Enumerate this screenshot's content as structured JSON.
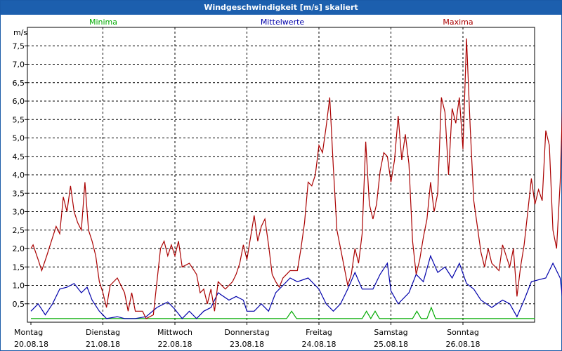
{
  "window": {
    "title": "Windgeschwindigkeit [m/s] skaliert"
  },
  "colors": {
    "minima": "#00aa00",
    "mittel": "#0000aa",
    "maxima": "#aa0000",
    "titlebar": "#1c5fae"
  },
  "chart_data": {
    "type": "line",
    "title": "Windgeschwindigkeit [m/s] skaliert",
    "ylabel": "m/s",
    "ylim": [
      0,
      8
    ],
    "yticks": [
      "0,5",
      "1,0",
      "1,5",
      "2,0",
      "2,5",
      "3,0",
      "3,5",
      "4,0",
      "4,5",
      "5,0",
      "5,5",
      "6,0",
      "6,5",
      "7,0",
      "7,5"
    ],
    "grid": true,
    "legend_placement": "top",
    "days": [
      {
        "weekday": "Montag",
        "date": "20.08.18"
      },
      {
        "weekday": "Dienstag",
        "date": "21.08.18"
      },
      {
        "weekday": "Mittwoch",
        "date": "22.08.18"
      },
      {
        "weekday": "Donnerstag",
        "date": "23.08.18"
      },
      {
        "weekday": "Freitag",
        "date": "24.08.18"
      },
      {
        "weekday": "Samstag",
        "date": "25.08.18"
      },
      {
        "weekday": "Sonntag",
        "date": "26.08.18"
      }
    ],
    "x_range_days": [
      0,
      7
    ],
    "series": [
      {
        "name": "Minima",
        "color": "#00aa00",
        "points": [
          [
            0,
            0.1
          ],
          [
            3.55,
            0.1
          ],
          [
            3.62,
            0.3
          ],
          [
            3.69,
            0.1
          ],
          [
            4.6,
            0.1
          ],
          [
            4.66,
            0.3
          ],
          [
            4.72,
            0.1
          ],
          [
            4.78,
            0.3
          ],
          [
            4.84,
            0.1
          ],
          [
            5.3,
            0.1
          ],
          [
            5.36,
            0.3
          ],
          [
            5.42,
            0.1
          ],
          [
            5.5,
            0.1
          ],
          [
            5.56,
            0.4
          ],
          [
            5.62,
            0.1
          ],
          [
            7,
            0.1
          ]
        ]
      },
      {
        "name": "Mittelwerte",
        "color": "#0000aa",
        "points": [
          [
            0,
            0.3
          ],
          [
            0.1,
            0.5
          ],
          [
            0.2,
            0.2
          ],
          [
            0.3,
            0.5
          ],
          [
            0.4,
            0.9
          ],
          [
            0.5,
            0.95
          ],
          [
            0.6,
            1.05
          ],
          [
            0.7,
            0.8
          ],
          [
            0.78,
            0.95
          ],
          [
            0.85,
            0.6
          ],
          [
            0.95,
            0.3
          ],
          [
            1.05,
            0.1
          ],
          [
            1.2,
            0.15
          ],
          [
            1.3,
            0.1
          ],
          [
            1.45,
            0.1
          ],
          [
            1.6,
            0.15
          ],
          [
            1.75,
            0.4
          ],
          [
            1.9,
            0.55
          ],
          [
            2.0,
            0.35
          ],
          [
            2.1,
            0.1
          ],
          [
            2.2,
            0.3
          ],
          [
            2.3,
            0.1
          ],
          [
            2.4,
            0.3
          ],
          [
            2.5,
            0.4
          ],
          [
            2.6,
            0.8
          ],
          [
            2.75,
            0.6
          ],
          [
            2.85,
            0.7
          ],
          [
            2.95,
            0.6
          ],
          [
            3.0,
            0.3
          ],
          [
            3.1,
            0.3
          ],
          [
            3.2,
            0.5
          ],
          [
            3.3,
            0.3
          ],
          [
            3.4,
            0.8
          ],
          [
            3.5,
            1.0
          ],
          [
            3.6,
            1.2
          ],
          [
            3.7,
            1.1
          ],
          [
            3.85,
            1.2
          ],
          [
            4.0,
            0.9
          ],
          [
            4.1,
            0.5
          ],
          [
            4.2,
            0.3
          ],
          [
            4.3,
            0.5
          ],
          [
            4.4,
            0.9
          ],
          [
            4.5,
            1.35
          ],
          [
            4.6,
            0.9
          ],
          [
            4.75,
            0.9
          ],
          [
            4.85,
            1.3
          ],
          [
            4.95,
            1.6
          ],
          [
            5.0,
            0.85
          ],
          [
            5.1,
            0.5
          ],
          [
            5.25,
            0.8
          ],
          [
            5.35,
            1.3
          ],
          [
            5.45,
            1.1
          ],
          [
            5.55,
            1.8
          ],
          [
            5.65,
            1.35
          ],
          [
            5.75,
            1.5
          ],
          [
            5.85,
            1.2
          ],
          [
            5.95,
            1.6
          ],
          [
            6.05,
            1.05
          ],
          [
            6.15,
            0.9
          ],
          [
            6.25,
            0.6
          ],
          [
            6.4,
            0.4
          ],
          [
            6.55,
            0.6
          ],
          [
            6.65,
            0.5
          ],
          [
            6.75,
            0.15
          ],
          [
            6.85,
            0.6
          ],
          [
            6.95,
            1.1
          ],
          [
            7.05,
            1.15
          ],
          [
            7.15,
            1.2
          ],
          [
            7.25,
            1.6
          ],
          [
            7.35,
            1.2
          ],
          [
            7.4,
            0.4
          ],
          [
            7.48,
            0.7
          ],
          [
            7.55,
            2.1
          ],
          [
            7.6,
            0.85
          ]
        ]
      },
      {
        "name": "Maxima",
        "color": "#aa0000",
        "points": [
          [
            0,
            2.0
          ],
          [
            0.03,
            2.1
          ],
          [
            0.1,
            1.7
          ],
          [
            0.15,
            1.4
          ],
          [
            0.22,
            1.8
          ],
          [
            0.3,
            2.3
          ],
          [
            0.35,
            2.6
          ],
          [
            0.4,
            2.4
          ],
          [
            0.45,
            3.4
          ],
          [
            0.5,
            3.0
          ],
          [
            0.55,
            3.7
          ],
          [
            0.6,
            3.0
          ],
          [
            0.65,
            2.7
          ],
          [
            0.7,
            2.5
          ],
          [
            0.75,
            3.8
          ],
          [
            0.8,
            2.5
          ],
          [
            0.85,
            2.2
          ],
          [
            0.9,
            1.8
          ],
          [
            0.95,
            1.1
          ],
          [
            1.0,
            0.8
          ],
          [
            1.05,
            0.4
          ],
          [
            1.1,
            1.0
          ],
          [
            1.2,
            1.2
          ],
          [
            1.3,
            0.8
          ],
          [
            1.35,
            0.3
          ],
          [
            1.4,
            0.8
          ],
          [
            1.45,
            0.3
          ],
          [
            1.55,
            0.3
          ],
          [
            1.6,
            0.1
          ],
          [
            1.7,
            0.2
          ],
          [
            1.75,
            1.1
          ],
          [
            1.8,
            2.0
          ],
          [
            1.85,
            2.2
          ],
          [
            1.9,
            1.8
          ],
          [
            1.95,
            2.1
          ],
          [
            2.0,
            1.8
          ],
          [
            2.05,
            2.2
          ],
          [
            2.1,
            1.5
          ],
          [
            2.2,
            1.6
          ],
          [
            2.3,
            1.3
          ],
          [
            2.35,
            0.8
          ],
          [
            2.4,
            0.9
          ],
          [
            2.45,
            0.5
          ],
          [
            2.5,
            0.9
          ],
          [
            2.55,
            0.3
          ],
          [
            2.6,
            1.1
          ],
          [
            2.7,
            0.9
          ],
          [
            2.8,
            1.1
          ],
          [
            2.85,
            1.3
          ],
          [
            2.9,
            1.6
          ],
          [
            2.95,
            2.1
          ],
          [
            3.0,
            1.7
          ],
          [
            3.05,
            2.3
          ],
          [
            3.1,
            2.9
          ],
          [
            3.15,
            2.2
          ],
          [
            3.2,
            2.6
          ],
          [
            3.25,
            2.8
          ],
          [
            3.3,
            2.1
          ],
          [
            3.35,
            1.3
          ],
          [
            3.4,
            1.1
          ],
          [
            3.45,
            0.95
          ],
          [
            3.5,
            1.2
          ],
          [
            3.55,
            1.3
          ],
          [
            3.6,
            1.4
          ],
          [
            3.7,
            1.4
          ],
          [
            3.75,
            2.0
          ],
          [
            3.8,
            2.7
          ],
          [
            3.85,
            3.8
          ],
          [
            3.9,
            3.7
          ],
          [
            3.95,
            4.0
          ],
          [
            4.0,
            4.8
          ],
          [
            4.05,
            4.6
          ],
          [
            4.1,
            5.3
          ],
          [
            4.15,
            6.1
          ],
          [
            4.2,
            4.2
          ],
          [
            4.25,
            2.5
          ],
          [
            4.3,
            2.0
          ],
          [
            4.35,
            1.5
          ],
          [
            4.4,
            1.0
          ],
          [
            4.45,
            1.3
          ],
          [
            4.5,
            2.0
          ],
          [
            4.55,
            1.6
          ],
          [
            4.6,
            2.4
          ],
          [
            4.65,
            4.9
          ],
          [
            4.7,
            3.2
          ],
          [
            4.75,
            2.8
          ],
          [
            4.8,
            3.2
          ],
          [
            4.85,
            4.1
          ],
          [
            4.9,
            4.6
          ],
          [
            4.95,
            4.5
          ],
          [
            5.0,
            3.8
          ],
          [
            5.05,
            4.4
          ],
          [
            5.1,
            5.6
          ],
          [
            5.15,
            4.4
          ],
          [
            5.2,
            5.1
          ],
          [
            5.25,
            4.3
          ],
          [
            5.3,
            2.2
          ],
          [
            5.35,
            1.3
          ],
          [
            5.4,
            1.7
          ],
          [
            5.45,
            2.3
          ],
          [
            5.5,
            2.8
          ],
          [
            5.55,
            3.8
          ],
          [
            5.6,
            3.0
          ],
          [
            5.65,
            3.5
          ],
          [
            5.7,
            6.1
          ],
          [
            5.75,
            5.7
          ],
          [
            5.8,
            4.0
          ],
          [
            5.85,
            5.8
          ],
          [
            5.9,
            5.4
          ],
          [
            5.95,
            6.1
          ],
          [
            6.0,
            4.7
          ],
          [
            6.05,
            7.7
          ],
          [
            6.1,
            5.3
          ],
          [
            6.15,
            3.3
          ],
          [
            6.2,
            2.6
          ],
          [
            6.25,
            1.9
          ],
          [
            6.3,
            1.5
          ],
          [
            6.35,
            2.0
          ],
          [
            6.4,
            1.6
          ],
          [
            6.5,
            1.4
          ],
          [
            6.55,
            2.1
          ],
          [
            6.6,
            1.8
          ],
          [
            6.65,
            1.5
          ],
          [
            6.7,
            2.0
          ],
          [
            6.75,
            0.7
          ],
          [
            6.8,
            1.5
          ],
          [
            6.85,
            2.1
          ],
          [
            6.9,
            3.0
          ],
          [
            6.95,
            3.9
          ],
          [
            7.0,
            3.2
          ],
          [
            7.05,
            3.6
          ],
          [
            7.1,
            3.3
          ],
          [
            7.15,
            5.2
          ],
          [
            7.2,
            4.8
          ],
          [
            7.25,
            2.5
          ],
          [
            7.3,
            2.0
          ],
          [
            7.35,
            3.8
          ],
          [
            7.4,
            7.0
          ],
          [
            7.45,
            6.6
          ],
          [
            7.5,
            3.8
          ]
        ]
      }
    ]
  }
}
